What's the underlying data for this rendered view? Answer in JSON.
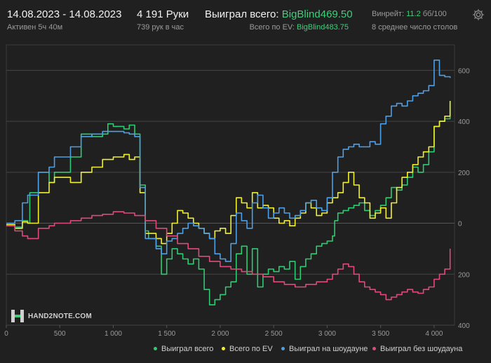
{
  "header": {
    "date_range": "14.08.2023 - 14.08.2023",
    "active_time": "Активен 5ч 40м",
    "hands": "4 191 Руки",
    "hands_per_hour": "739 рук в час",
    "won_label": "Выиграл всего: ",
    "won_value": "BigBlind469.50",
    "ev_label": "Всего по EV: ",
    "ev_value": "BigBlind483.75",
    "winrate_label": "Винрейт: ",
    "winrate_value": "11.2",
    "winrate_unit": " бб/100",
    "tables": "8 среднее число столов"
  },
  "logo": {
    "text": "HAND2NOTE.COM"
  },
  "colors": {
    "green": "#2ecc71",
    "yellow": "#f0f030",
    "blue": "#4d9fe8",
    "pink": "#e04a7a",
    "grid": "#444444",
    "background": "#202020"
  },
  "icons": {
    "settings": "gear-icon",
    "logo": "h2n-logo-icon"
  },
  "chart_data": {
    "type": "line",
    "xlim": [
      0,
      4191
    ],
    "ylim": [
      -400,
      700
    ],
    "x_ticks": [
      0,
      500,
      1000,
      1500,
      2000,
      2500,
      3000,
      3500,
      4000
    ],
    "x_tick_labels": [
      "0",
      "500",
      "1 000",
      "1 500",
      "2 000",
      "2 500",
      "3 000",
      "3 500",
      "4 000"
    ],
    "y_ticks": [
      600,
      400,
      200,
      0,
      -200,
      -400
    ],
    "y_tick_labels": [
      "600",
      "400",
      "200",
      "0",
      "200",
      "400"
    ],
    "grid": true,
    "legend_position": "bottom-right",
    "series": [
      {
        "name": "Выиграл всего",
        "color": "#2ecc71",
        "x": [
          0,
          80,
          150,
          200,
          220,
          300,
          400,
          450,
          600,
          700,
          800,
          900,
          950,
          1000,
          1100,
          1150,
          1200,
          1250,
          1300,
          1330,
          1400,
          1450,
          1500,
          1550,
          1600,
          1650,
          1700,
          1750,
          1800,
          1850,
          1900,
          1950,
          2000,
          2050,
          2100,
          2150,
          2200,
          2250,
          2300,
          2350,
          2400,
          2450,
          2500,
          2550,
          2600,
          2650,
          2700,
          2750,
          2800,
          2850,
          2900,
          2950,
          3000,
          3050,
          3070,
          3100,
          3150,
          3200,
          3250,
          3300,
          3350,
          3400,
          3450,
          3500,
          3550,
          3600,
          3650,
          3700,
          3750,
          3800,
          3850,
          3900,
          3950,
          4000,
          4050,
          4100,
          4150
        ],
        "y": [
          -10,
          -15,
          10,
          0,
          120,
          200,
          160,
          200,
          260,
          350,
          340,
          350,
          390,
          380,
          370,
          385,
          350,
          150,
          -30,
          -60,
          -90,
          -200,
          -140,
          -100,
          -120,
          -140,
          -160,
          -140,
          -180,
          -260,
          -320,
          -300,
          -280,
          -250,
          -230,
          -120,
          -90,
          -200,
          -100,
          -250,
          -200,
          -180,
          -190,
          -170,
          -180,
          -150,
          -220,
          -170,
          -140,
          -120,
          -90,
          -80,
          -70,
          -50,
          10,
          40,
          50,
          60,
          70,
          80,
          50,
          30,
          50,
          70,
          100,
          140,
          130,
          150,
          180,
          220,
          200,
          230,
          280,
          380,
          400,
          410,
          470
        ]
      },
      {
        "name": "Всего по EV",
        "color": "#f0f030",
        "x": [
          0,
          80,
          150,
          200,
          300,
          400,
          450,
          600,
          700,
          800,
          900,
          1000,
          1100,
          1150,
          1200,
          1250,
          1300,
          1400,
          1450,
          1500,
          1550,
          1600,
          1650,
          1700,
          1750,
          1800,
          1850,
          1900,
          1950,
          2000,
          2050,
          2100,
          2150,
          2200,
          2250,
          2300,
          2350,
          2400,
          2450,
          2500,
          2550,
          2600,
          2650,
          2700,
          2750,
          2800,
          2850,
          2900,
          2950,
          3000,
          3050,
          3100,
          3150,
          3200,
          3250,
          3300,
          3350,
          3400,
          3450,
          3500,
          3550,
          3600,
          3650,
          3700,
          3750,
          3800,
          3850,
          3900,
          3950,
          4000,
          4050,
          4100,
          4150
        ],
        "y": [
          -5,
          -20,
          5,
          0,
          120,
          160,
          180,
          160,
          200,
          220,
          250,
          260,
          270,
          250,
          260,
          120,
          -40,
          -60,
          -80,
          -40,
          0,
          50,
          40,
          20,
          0,
          -20,
          -40,
          -60,
          -30,
          -20,
          -40,
          30,
          100,
          80,
          60,
          120,
          60,
          70,
          60,
          20,
          0,
          10,
          -10,
          20,
          40,
          80,
          60,
          30,
          40,
          80,
          100,
          120,
          160,
          200,
          150,
          100,
          80,
          20,
          40,
          60,
          20,
          80,
          140,
          180,
          200,
          230,
          260,
          280,
          300,
          380,
          400,
          420,
          480
        ]
      },
      {
        "name": "Выиграл на шоудауне",
        "color": "#4d9fe8",
        "x": [
          0,
          80,
          150,
          200,
          300,
          400,
          450,
          600,
          700,
          800,
          900,
          1000,
          1100,
          1150,
          1200,
          1250,
          1300,
          1400,
          1450,
          1500,
          1550,
          1600,
          1650,
          1700,
          1750,
          1800,
          1850,
          1900,
          1950,
          2000,
          2050,
          2100,
          2150,
          2200,
          2250,
          2300,
          2350,
          2400,
          2450,
          2500,
          2550,
          2600,
          2650,
          2700,
          2750,
          2800,
          2850,
          2900,
          2950,
          3000,
          3050,
          3100,
          3150,
          3200,
          3250,
          3300,
          3350,
          3400,
          3450,
          3500,
          3550,
          3600,
          3650,
          3700,
          3750,
          3800,
          3850,
          3900,
          3950,
          4000,
          4050,
          4100,
          4150
        ],
        "y": [
          0,
          10,
          80,
          110,
          200,
          220,
          260,
          300,
          340,
          350,
          360,
          360,
          355,
          350,
          340,
          140,
          -60,
          -100,
          -120,
          -70,
          -60,
          -40,
          -20,
          0,
          -10,
          -20,
          -40,
          -60,
          -120,
          -140,
          -150,
          -80,
          40,
          10,
          -20,
          80,
          110,
          60,
          20,
          40,
          60,
          40,
          20,
          30,
          50,
          80,
          90,
          60,
          50,
          100,
          200,
          260,
          290,
          300,
          310,
          300,
          300,
          320,
          310,
          390,
          420,
          460,
          470,
          460,
          480,
          500,
          510,
          520,
          540,
          640,
          580,
          575,
          570
        ]
      },
      {
        "name": "Выиграл без шоудауна",
        "color": "#e04a7a",
        "x": [
          0,
          80,
          150,
          200,
          300,
          400,
          450,
          600,
          700,
          800,
          900,
          1000,
          1100,
          1200,
          1300,
          1400,
          1500,
          1600,
          1700,
          1800,
          1900,
          2000,
          2100,
          2200,
          2300,
          2400,
          2500,
          2600,
          2700,
          2800,
          2900,
          3000,
          3050,
          3100,
          3150,
          3200,
          3250,
          3300,
          3350,
          3400,
          3450,
          3500,
          3550,
          3600,
          3650,
          3700,
          3750,
          3800,
          3850,
          3900,
          3950,
          4000,
          4050,
          4100,
          4150
        ],
        "y": [
          -10,
          -30,
          -50,
          -60,
          -20,
          -10,
          0,
          10,
          20,
          30,
          35,
          45,
          40,
          30,
          10,
          -20,
          -50,
          -80,
          -100,
          -130,
          -150,
          -170,
          -180,
          -190,
          -200,
          -210,
          -230,
          -240,
          -250,
          -240,
          -230,
          -220,
          -200,
          -180,
          -160,
          -170,
          -200,
          -230,
          -250,
          -260,
          -270,
          -280,
          -300,
          -290,
          -280,
          -270,
          -260,
          -270,
          -275,
          -260,
          -250,
          -220,
          -200,
          -180,
          -100
        ]
      }
    ]
  }
}
